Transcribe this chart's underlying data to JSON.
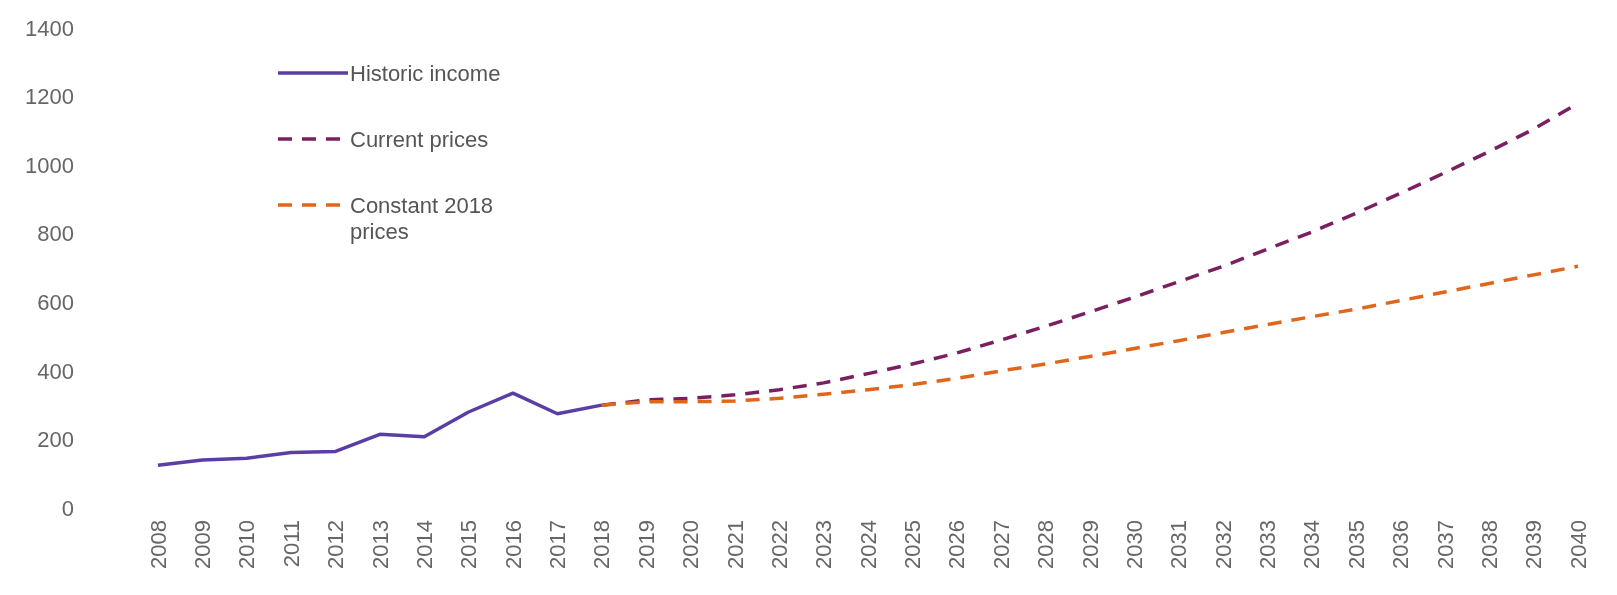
{
  "chart_data": {
    "type": "line",
    "categories": [
      "2008",
      "2009",
      "2010",
      "2011",
      "2012",
      "2013",
      "2014",
      "2015",
      "2016",
      "2017",
      "2018",
      "2019",
      "2020",
      "2021",
      "2022",
      "2023",
      "2024",
      "2025",
      "2026",
      "2027",
      "2028",
      "2029",
      "2030",
      "2031",
      "2032",
      "2033",
      "2034",
      "2035",
      "2036",
      "2037",
      "2038",
      "2039",
      "2040"
    ],
    "series": [
      {
        "name": "Historic income",
        "color": "#5a3ea6",
        "line_style": "solid",
        "values": [
          125,
          140,
          145,
          162,
          165,
          215,
          208,
          280,
          335,
          275,
          300,
          null,
          null,
          null,
          null,
          null,
          null,
          null,
          null,
          null,
          null,
          null,
          null,
          null,
          null,
          null,
          null,
          null,
          null,
          null,
          null,
          null,
          null
        ]
      },
      {
        "name": "Current prices",
        "color": "#7a1f5f",
        "line_style": "dashed",
        "values": [
          null,
          null,
          null,
          null,
          null,
          null,
          null,
          null,
          null,
          null,
          300,
          315,
          320,
          330,
          345,
          365,
          392,
          420,
          452,
          490,
          530,
          572,
          615,
          660,
          705,
          755,
          805,
          860,
          918,
          978,
          1040,
          1105,
          1180
        ]
      },
      {
        "name": "Constant 2018 prices",
        "color": "#e0661c",
        "line_style": "dashed",
        "values": [
          null,
          null,
          null,
          null,
          null,
          null,
          null,
          null,
          null,
          null,
          300,
          310,
          310,
          312,
          320,
          332,
          345,
          360,
          378,
          400,
          420,
          442,
          465,
          488,
          512,
          535,
          558,
          580,
          605,
          630,
          655,
          680,
          705
        ]
      }
    ],
    "ylim": [
      0,
      1400
    ],
    "yticks": [
      0,
      200,
      400,
      600,
      800,
      1000,
      1200,
      1400
    ],
    "grid": false,
    "legend": "top left"
  }
}
